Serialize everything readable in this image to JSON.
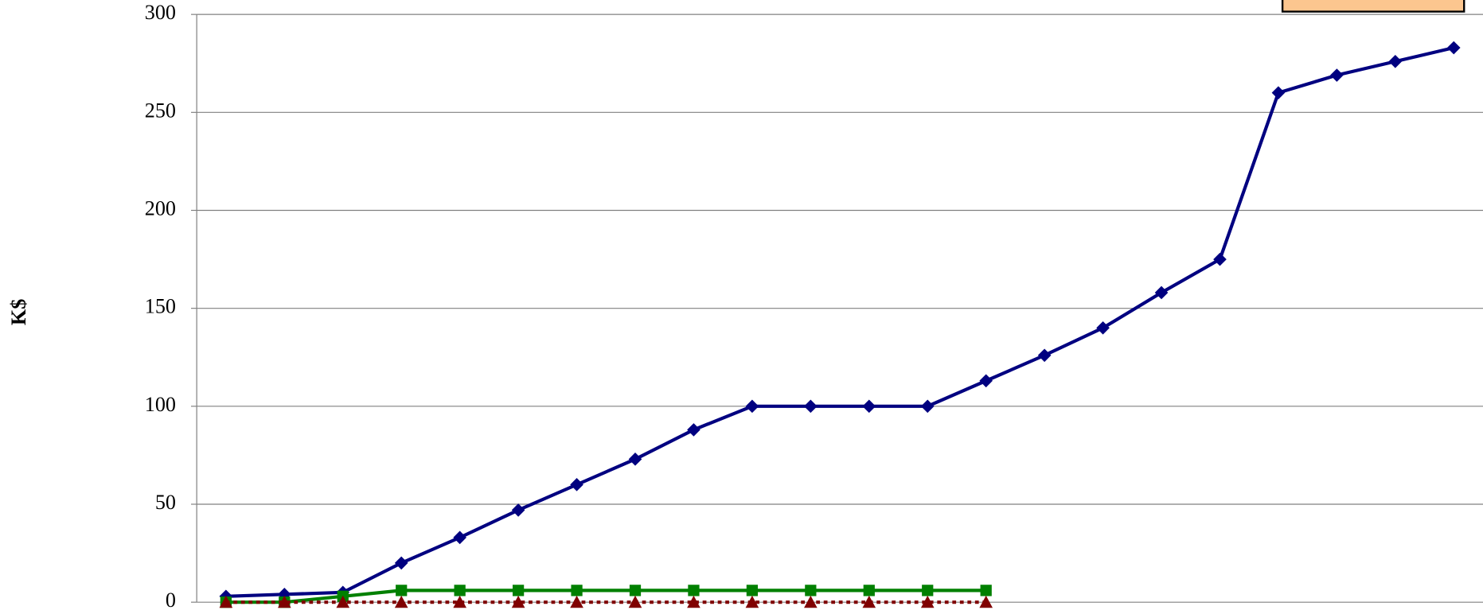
{
  "chart_data": {
    "type": "line",
    "y_label": "K$",
    "categories": [
      null,
      null,
      null,
      null,
      null,
      null,
      null,
      null,
      null,
      null,
      null,
      null,
      null,
      null,
      null,
      null,
      null,
      null,
      null,
      null,
      null,
      null
    ],
    "series": [
      {
        "color": "#000080",
        "marker": "diamond",
        "values": [
          3,
          4,
          5,
          20,
          33,
          47,
          60,
          73,
          88,
          100,
          100,
          100,
          100,
          113,
          126,
          140,
          158,
          175,
          260,
          269,
          276,
          283
        ]
      },
      {
        "color": "#008000",
        "marker": "square",
        "values": [
          0,
          0,
          3,
          6,
          6,
          6,
          6,
          6,
          6,
          6,
          6,
          6,
          6,
          6,
          null,
          null,
          null,
          null,
          null,
          null,
          null,
          null
        ]
      },
      {
        "color": "#800000",
        "marker": "triangle",
        "dashed": true,
        "values": [
          0,
          0,
          0,
          0,
          0,
          0,
          0,
          0,
          0,
          0,
          0,
          0,
          0,
          0,
          null,
          null,
          null,
          null,
          null,
          null,
          null,
          null
        ]
      }
    ],
    "ylim": [
      0,
      300
    ],
    "yticks": [
      0,
      50,
      100,
      150,
      200,
      250,
      300
    ],
    "grid": true
  }
}
